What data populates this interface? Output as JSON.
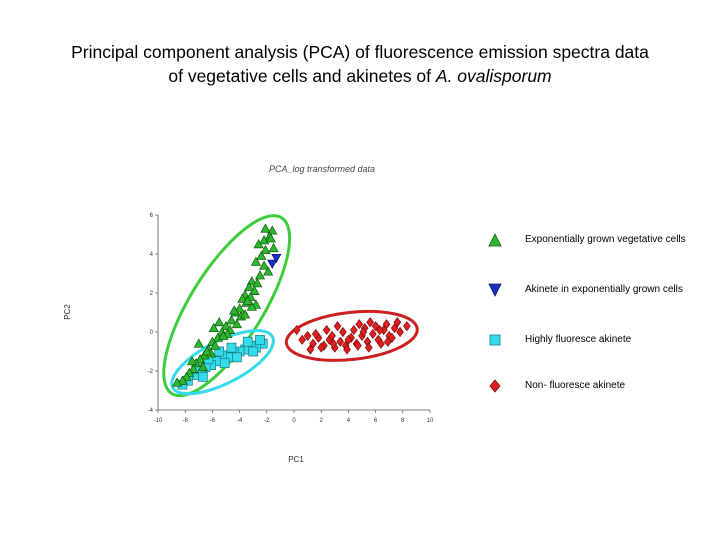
{
  "page": {
    "title_line1": "Principal component analysis (PCA) of fluorescence emission spectra data",
    "title_line2_prefix": "of vegetative cells and akinetes of ",
    "title_line2_species": "A. ovalisporum"
  },
  "chart_data": {
    "type": "scatter",
    "title": "PCA_log transformed data",
    "xlabel": "PC1",
    "ylabel": "PC2",
    "xlim": [
      -10,
      10
    ],
    "ylim": [
      -4,
      6
    ],
    "x_ticks": [
      "-10",
      "-8",
      "-6",
      "-4",
      "-2",
      "0",
      "2",
      "4",
      "6",
      "8",
      "10"
    ],
    "y_ticks": [
      "6",
      "4",
      "2",
      "0",
      "-2",
      "-4"
    ],
    "grid": false,
    "legend_position": "right",
    "series": [
      {
        "name": "Exponentially grown vegetative cells",
        "marker": "triangle-up",
        "color": "#2fb52f",
        "outline": "#0a5a0a",
        "x": [
          -2.1,
          -1.6,
          -1.8,
          -2.2,
          -1.7,
          -2.6,
          -2.1,
          -1.5,
          -2.4,
          -2.8,
          -2.2,
          -1.9,
          -2.5,
          -3.1,
          -2.7,
          -3.3,
          -2.9,
          -3.6,
          -3.2,
          -3.8,
          -3.5,
          -2.8,
          -3.1,
          -4.0,
          -4.3,
          -3.9,
          -3.6,
          -4.6,
          -4.2,
          -5.0,
          -4.7,
          -5.3,
          -4.9,
          -5.6,
          -5.2,
          -6.0,
          -5.8,
          -6.3,
          -6.1,
          -6.6,
          -6.9,
          -7.2,
          -6.7,
          -7.4,
          -7.7,
          -7.9,
          -8.2,
          -8.6,
          -7.0,
          -5.5,
          -4.4,
          -3.4,
          -6.4,
          -5.9,
          -7.5
        ],
        "y": [
          5.3,
          5.2,
          4.9,
          4.7,
          4.8,
          4.5,
          4.2,
          4.3,
          3.9,
          3.6,
          3.4,
          3.1,
          2.9,
          2.6,
          2.5,
          2.3,
          2.1,
          1.9,
          1.8,
          1.7,
          1.5,
          1.4,
          1.3,
          1.2,
          1.0,
          0.8,
          0.9,
          0.6,
          0.4,
          0.3,
          0.1,
          0.0,
          -0.1,
          -0.3,
          -0.2,
          -0.5,
          -0.7,
          -0.9,
          -1.1,
          -1.2,
          -1.4,
          -1.6,
          -1.8,
          -1.9,
          -2.1,
          -2.3,
          -2.5,
          -2.6,
          -0.6,
          0.5,
          1.1,
          1.6,
          -1.0,
          0.2,
          -1.5
        ]
      },
      {
        "name": "Akinete in exponentially grown cells",
        "marker": "triangle-down",
        "color": "#1a2fbf",
        "outline": "#0a1070",
        "x": [
          -1.3,
          -1.6
        ],
        "y": [
          3.8,
          3.5
        ]
      },
      {
        "name": "Highly fluoresce akinete",
        "marker": "square",
        "color": "#35dbe8",
        "outline": "#127a80",
        "x": [
          -2.3,
          -2.8,
          -3.2,
          -3.6,
          -4.0,
          -4.4,
          -4.8,
          -5.3,
          -5.7,
          -6.1,
          -6.5,
          -6.9,
          -7.3,
          -7.8,
          -8.2,
          -2.5,
          -3.4,
          -4.6,
          -5.5,
          -6.3,
          -7.1,
          -3.0,
          -4.2,
          -5.1,
          -6.7
        ],
        "y": [
          -0.6,
          -0.8,
          -0.7,
          -0.9,
          -1.0,
          -1.1,
          -1.3,
          -1.2,
          -1.5,
          -1.7,
          -1.8,
          -2.1,
          -2.2,
          -2.5,
          -2.7,
          -0.4,
          -0.5,
          -0.8,
          -1.0,
          -1.4,
          -1.9,
          -1.0,
          -1.3,
          -1.6,
          -2.3
        ]
      },
      {
        "name": "Non- fluoresce akinete",
        "marker": "diamond",
        "color": "#e02020",
        "outline": "#7a0808",
        "x": [
          0.2,
          0.6,
          1.0,
          1.4,
          1.8,
          2.2,
          2.6,
          3.0,
          3.4,
          3.8,
          4.2,
          4.6,
          5.0,
          5.4,
          5.8,
          6.2,
          6.6,
          7.0,
          7.4,
          7.8,
          8.3,
          1.2,
          2.0,
          2.8,
          3.6,
          4.4,
          5.2,
          6.0,
          6.8,
          7.6,
          1.6,
          2.4,
          3.2,
          4.0,
          4.8,
          5.6,
          6.4,
          7.2,
          3.9,
          4.7,
          5.5,
          6.3,
          2.9,
          5.1,
          6.9
        ],
        "y": [
          0.1,
          -0.4,
          -0.2,
          -0.6,
          -0.3,
          -0.7,
          -0.4,
          -0.8,
          -0.5,
          -0.7,
          -0.3,
          -0.6,
          -0.2,
          -0.5,
          -0.1,
          -0.4,
          0.1,
          -0.2,
          0.2,
          0.0,
          0.3,
          -0.9,
          -0.8,
          -0.2,
          0.0,
          0.1,
          0.2,
          0.3,
          0.4,
          0.5,
          -0.1,
          0.1,
          0.3,
          -0.4,
          0.4,
          0.5,
          -0.6,
          -0.3,
          -0.9,
          -0.7,
          -0.8,
          0.1,
          -0.6,
          0.0,
          -0.5
        ]
      }
    ],
    "ellipses": [
      {
        "name": "green-ellipse",
        "color": "#3ccc3c"
      },
      {
        "name": "cyan-ellipse",
        "color": "#35dbe8"
      },
      {
        "name": "red-ellipse",
        "color": "#cc2020"
      }
    ]
  }
}
